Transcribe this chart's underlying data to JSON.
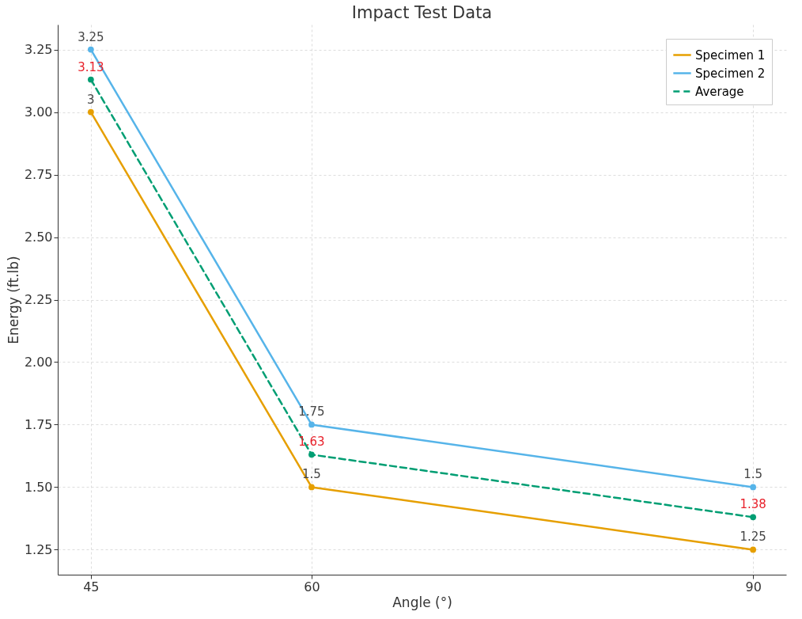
{
  "chart_data": {
    "type": "line",
    "title": "Impact Test Data",
    "xlabel": "Angle (°)",
    "ylabel": "Energy (ft.lb)",
    "x": [
      45,
      60,
      90
    ],
    "series": [
      {
        "name": "Specimen 1",
        "color": "#e69f00",
        "values": [
          3,
          1.5,
          1.25
        ],
        "value_labels": [
          "3",
          "1.5",
          "1.25"
        ]
      },
      {
        "name": "Specimen 2",
        "color": "#56b4e9",
        "values": [
          3.25,
          1.75,
          1.5
        ],
        "value_labels": [
          "3.25",
          "1.75",
          "1.5"
        ]
      },
      {
        "name": "Average",
        "color": "#009e73",
        "values": [
          3.13,
          1.63,
          1.38
        ],
        "value_labels": [
          "3.13",
          "1.63",
          "1.38"
        ],
        "line_style": "dashed"
      }
    ],
    "xlim": [
      42.75,
      92.25
    ],
    "xticks": [
      45,
      60,
      90
    ],
    "ylim": [
      1.15,
      3.35
    ],
    "yticks": [
      {
        "value": 1.25,
        "label": "1.25"
      },
      {
        "value": 1.5,
        "label": "1.50"
      },
      {
        "value": 1.75,
        "label": "1.75"
      },
      {
        "value": 2,
        "label": "2.00"
      },
      {
        "value": 2.25,
        "label": "2.25"
      },
      {
        "value": 2.5,
        "label": "2.50"
      },
      {
        "value": 2.75,
        "label": "2.75"
      },
      {
        "value": 3,
        "label": "3.00"
      },
      {
        "value": 3.25,
        "label": "3.25"
      }
    ],
    "grid": true,
    "legend": "top right",
    "marker": "circle",
    "line_style": "solid"
  }
}
